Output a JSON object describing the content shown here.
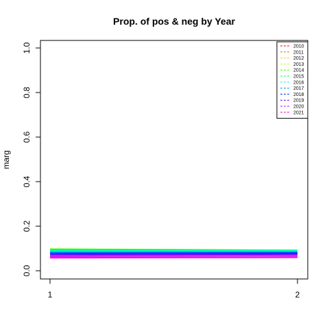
{
  "chart_data": {
    "type": "line",
    "title": "Prop. of pos & neg by Year",
    "xlabel": "",
    "ylabel": "marg",
    "x": [
      1,
      2
    ],
    "x_ticks": [
      "1",
      "2"
    ],
    "y_ticks": [
      "0.0",
      "0.2",
      "0.4",
      "0.6",
      "0.8",
      "1.0"
    ],
    "xlim": [
      1,
      2
    ],
    "ylim": [
      0,
      1
    ],
    "grid": false,
    "legend_position": "top-right",
    "series": [
      {
        "name": "2010",
        "color": "#ff0000",
        "values": [
          0.08,
          0.078
        ]
      },
      {
        "name": "2011",
        "color": "#ff6600",
        "values": [
          0.085,
          0.082
        ]
      },
      {
        "name": "2012",
        "color": "#ffcc00",
        "values": [
          0.09,
          0.087
        ]
      },
      {
        "name": "2013",
        "color": "#ccff00",
        "values": [
          0.095,
          0.09
        ]
      },
      {
        "name": "2014",
        "color": "#33ff00",
        "values": [
          0.097,
          0.092
        ]
      },
      {
        "name": "2015",
        "color": "#00ff66",
        "values": [
          0.093,
          0.091
        ]
      },
      {
        "name": "2016",
        "color": "#00ffcc",
        "values": [
          0.088,
          0.089
        ]
      },
      {
        "name": "2017",
        "color": "#0099ff",
        "values": [
          0.083,
          0.084
        ]
      },
      {
        "name": "2018",
        "color": "#0033ff",
        "values": [
          0.078,
          0.08
        ]
      },
      {
        "name": "2019",
        "color": "#6600ff",
        "values": [
          0.072,
          0.074
        ]
      },
      {
        "name": "2020",
        "color": "#cc00ff",
        "values": [
          0.065,
          0.067
        ]
      },
      {
        "name": "2021",
        "color": "#ff00cc",
        "values": [
          0.058,
          0.06
        ]
      }
    ]
  }
}
